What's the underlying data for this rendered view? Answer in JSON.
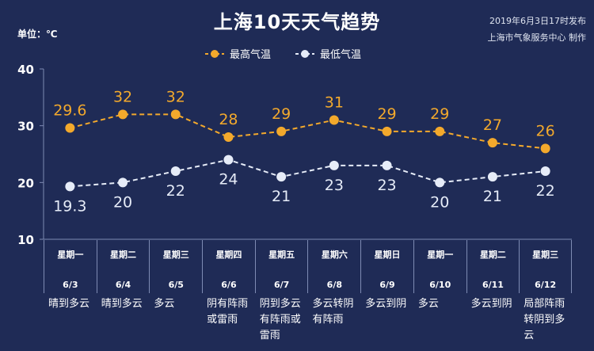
{
  "header": {
    "title": "上海10天天气趋势",
    "issue_time": "2019年6月3日17时发布",
    "issuer": "上海市气象服务中心 制作",
    "unit_label": "单位：℃"
  },
  "legend": {
    "high_label": "最高气温",
    "low_label": "最低气温"
  },
  "colors": {
    "background": "#1f2b56",
    "high": "#f3a92c",
    "low": "#e6ecf8",
    "grid": "#7e8bb3"
  },
  "days": [
    {
      "weekday": "星期一",
      "date": "6/3",
      "condition": "晴到多云"
    },
    {
      "weekday": "星期二",
      "date": "6/4",
      "condition": "晴到多云"
    },
    {
      "weekday": "星期三",
      "date": "6/5",
      "condition": "多云"
    },
    {
      "weekday": "星期四",
      "date": "6/6",
      "condition": "阴有阵雨或雷雨"
    },
    {
      "weekday": "星期五",
      "date": "6/7",
      "condition": "阴到多云有阵雨或雷雨"
    },
    {
      "weekday": "星期六",
      "date": "6/8",
      "condition": "多云转阴有阵雨"
    },
    {
      "weekday": "星期日",
      "date": "6/9",
      "condition": "多云到阴"
    },
    {
      "weekday": "星期一",
      "date": "6/10",
      "condition": "多云"
    },
    {
      "weekday": "星期二",
      "date": "6/11",
      "condition": "多云到阴"
    },
    {
      "weekday": "星期三",
      "date": "6/12",
      "condition": "局部阵雨转阴到多云"
    }
  ],
  "chart_data": {
    "type": "line",
    "title": "上海10天天气趋势",
    "ylabel": "单位：℃",
    "categories": [
      "6/3",
      "6/4",
      "6/5",
      "6/6",
      "6/7",
      "6/8",
      "6/9",
      "6/10",
      "6/11",
      "6/12"
    ],
    "series": [
      {
        "name": "最高气温",
        "values": [
          29.6,
          32,
          32,
          28,
          29,
          31,
          29,
          29,
          27,
          26
        ],
        "labels": [
          "29.6",
          "32",
          "32",
          "28",
          "29",
          "31",
          "29",
          "29",
          "27",
          "26"
        ]
      },
      {
        "name": "最低气温",
        "values": [
          19.3,
          20,
          22,
          24,
          21,
          23,
          23,
          20,
          21,
          22
        ],
        "labels": [
          "19.3",
          "20",
          "22",
          "24",
          "21",
          "23",
          "23",
          "20",
          "21",
          "22"
        ]
      }
    ],
    "ylim": [
      10,
      40
    ],
    "yticks": [
      "10",
      "20",
      "30",
      "40"
    ],
    "line_style": "dashed",
    "grid": false,
    "legend_position": "top-center"
  }
}
